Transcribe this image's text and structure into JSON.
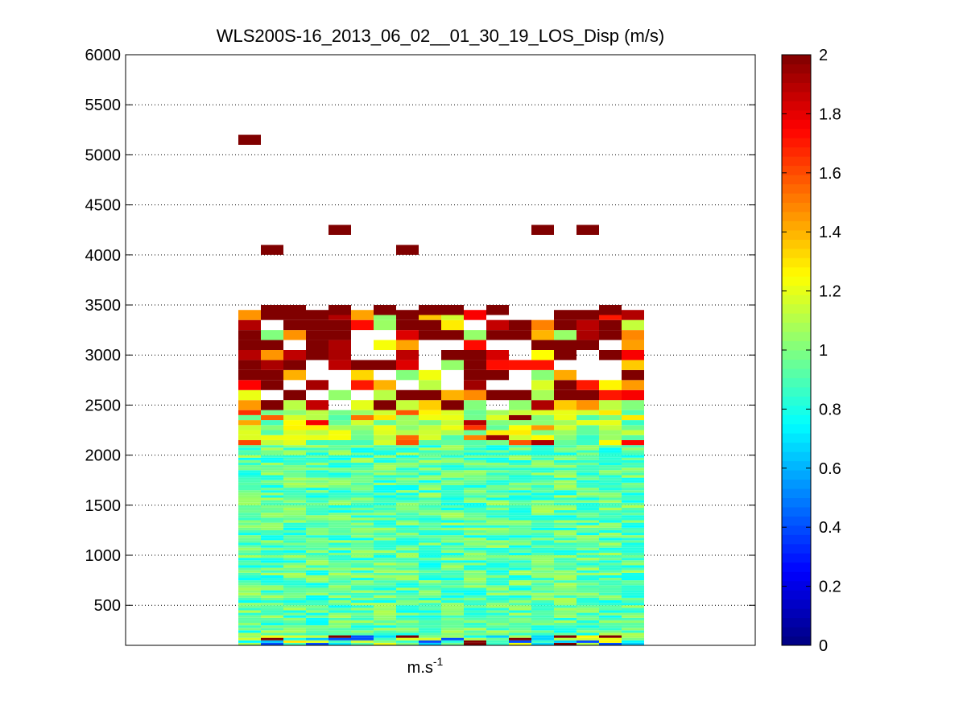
{
  "chart_data": {
    "type": "heatmap",
    "title": "WLS200S-16_2013_06_02__01_30_19_LOS_Disp (m/s)",
    "xlabel_base": "m.s",
    "xlabel_exp": "-1",
    "ylabel": "",
    "ylim": [
      100,
      6000
    ],
    "yticks": [
      "500",
      "1000",
      "1500",
      "2000",
      "2500",
      "3000",
      "3500",
      "4000",
      "4500",
      "5000",
      "5500",
      "6000"
    ],
    "grid": "y-dotted",
    "colormap": "jet",
    "colorbar": {
      "range": [
        0,
        2
      ],
      "ticks": [
        "0",
        "0.2",
        "0.4",
        "0.6",
        "0.8",
        "1",
        "1.2",
        "1.4",
        "1.6",
        "1.8",
        "2"
      ]
    },
    "columns": 18,
    "data_description": "Dispersion values per time column (x) and altitude (y, m). Near-ground to ~2000 m values 0.7–1.1 m/s, 2000–2400 m ~0.8–1.3, 2450–3400 m sparse high values 1.2–2.0 (often saturated at 2), isolated saturated cells near 4000–5150 m.",
    "sparse_cells": [
      {
        "col": 0,
        "y": 5150,
        "v": 2.0
      },
      {
        "col": 1,
        "y": 4050,
        "v": 2.0
      },
      {
        "col": 4,
        "y": 4250,
        "v": 2.0
      },
      {
        "col": 7,
        "y": 4050,
        "v": 2.0
      },
      {
        "col": 13,
        "y": 4250,
        "v": 2.0
      },
      {
        "col": 15,
        "y": 4250,
        "v": 2.0
      }
    ]
  },
  "colors": {
    "jet_low": "#00008f",
    "jet_mid": "#7fff7f",
    "jet_high": "#800000"
  }
}
